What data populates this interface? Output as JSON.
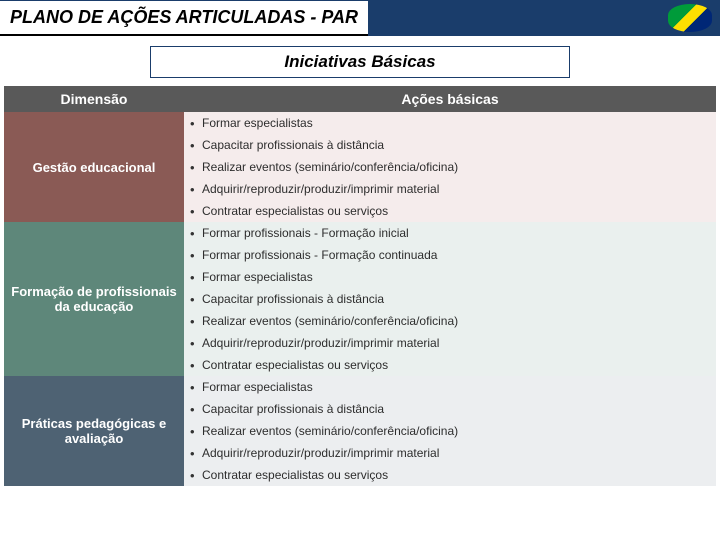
{
  "header": {
    "title": "PLANO DE AÇÕES ARTICULADAS - PAR",
    "subtitle": "Iniciativas Básicas"
  },
  "columns": {
    "c0": "Dimensão",
    "c1": "Ações básicas"
  },
  "colors": {
    "header_bar": "#1a3d6b",
    "thead_bg": "#595959",
    "dim_bgs": [
      "#8a5a55",
      "#5e877a",
      "#4e6273"
    ],
    "row_tints": [
      "#f5ecec",
      "#eaf0ee",
      "#eceef0"
    ]
  },
  "sections": [
    {
      "dim": "Gestão educacional",
      "actions": [
        "Formar especialistas",
        "Capacitar profissionais à distância",
        "Realizar eventos (seminário/conferência/oficina)",
        "Adquirir/reproduzir/produzir/imprimir material",
        "Contratar especialistas ou serviços"
      ]
    },
    {
      "dim": "Formação de profissionais da educação",
      "actions": [
        "Formar profissionais - Formação inicial",
        "Formar profissionais - Formação continuada",
        "Formar especialistas",
        "Capacitar profissionais à distância",
        "Realizar eventos (seminário/conferência/oficina)",
        "Adquirir/reproduzir/produzir/imprimir material",
        "Contratar especialistas ou serviços"
      ]
    },
    {
      "dim": "Práticas pedagógicas e avaliação",
      "actions": [
        "Formar especialistas",
        "Capacitar profissionais à distância",
        "Realizar eventos (seminário/conferência/oficina)",
        "Adquirir/reproduzir/produzir/imprimir material",
        "Contratar especialistas ou serviços"
      ]
    }
  ]
}
